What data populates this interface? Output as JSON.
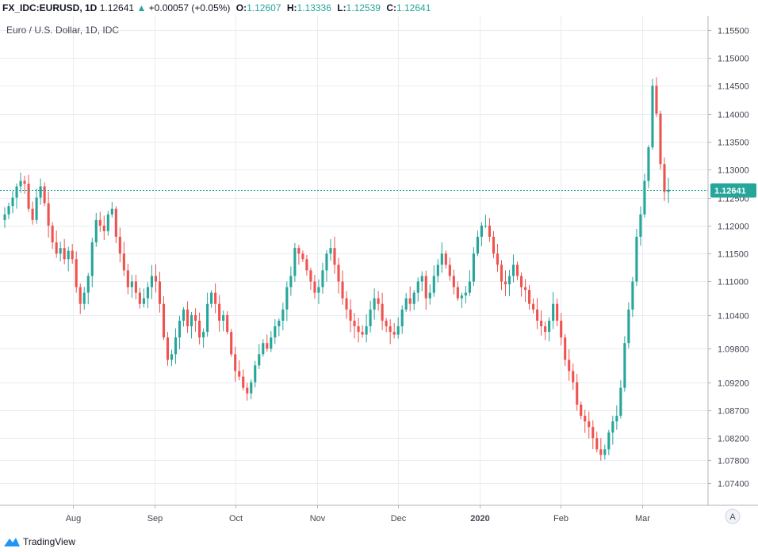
{
  "header": {
    "symbol": "FX_IDC:EURUSD, 1D",
    "last": "1.12641",
    "arrow": "▲",
    "change": "+0.00057 (+0.05%)",
    "open_label": "O:",
    "open": "1.12607",
    "high_label": "H:",
    "high": "1.13336",
    "low_label": "L:",
    "low": "1.12539",
    "close_label": "C:",
    "close": "1.12641"
  },
  "legend": "Euro / U.S. Dollar, 1D, IDC",
  "current_price_label": "1.12641",
  "auto_scale_label": "A",
  "footer": {
    "brand": "TradingView"
  },
  "colors": {
    "up": "#26a69a",
    "down": "#ef5350",
    "grid": "#e9ecf2",
    "axis": "#b2b5be"
  },
  "chart_data": {
    "type": "candlestick",
    "title": "Euro / U.S. Dollar, 1D, IDC",
    "ylim": [
      1.07,
      1.1575
    ],
    "y_ticks": [
      "1.15500",
      "1.15000",
      "1.14500",
      "1.14000",
      "1.13500",
      "1.13000",
      "1.12500",
      "1.12000",
      "1.11500",
      "1.11000",
      "1.10400",
      "1.09800",
      "1.09200",
      "1.08700",
      "1.08200",
      "1.07800",
      "1.07400"
    ],
    "x_ticks": [
      "Aug",
      "Sep",
      "Oct",
      "Nov",
      "Dec",
      "2020",
      "Feb",
      "Mar"
    ],
    "current_price": 1.12641,
    "grid": true,
    "closes": [
      1.122,
      1.1235,
      1.125,
      1.127,
      1.128,
      1.1275,
      1.123,
      1.121,
      1.125,
      1.127,
      1.124,
      1.12,
      1.117,
      1.115,
      1.116,
      1.114,
      1.1155,
      1.114,
      1.109,
      1.106,
      1.108,
      1.111,
      1.117,
      1.121,
      1.12,
      1.119,
      1.122,
      1.123,
      1.118,
      1.115,
      1.112,
      1.109,
      1.11,
      1.108,
      1.106,
      1.107,
      1.109,
      1.111,
      1.11,
      1.106,
      1.1,
      1.096,
      1.097,
      1.1,
      1.103,
      1.105,
      1.102,
      1.104,
      1.103,
      1.1,
      1.101,
      1.106,
      1.108,
      1.106,
      1.103,
      1.104,
      1.101,
      1.097,
      1.094,
      1.093,
      1.091,
      1.09,
      1.092,
      1.095,
      1.097,
      1.099,
      1.098,
      1.1,
      1.102,
      1.103,
      1.105,
      1.109,
      1.111,
      1.116,
      1.115,
      1.114,
      1.112,
      1.11,
      1.108,
      1.109,
      1.112,
      1.115,
      1.116,
      1.113,
      1.11,
      1.107,
      1.105,
      1.103,
      1.102,
      1.101,
      1.1005,
      1.102,
      1.105,
      1.107,
      1.106,
      1.103,
      1.102,
      1.101,
      1.1005,
      1.102,
      1.105,
      1.107,
      1.106,
      1.108,
      1.11,
      1.111,
      1.107,
      1.108,
      1.111,
      1.113,
      1.115,
      1.113,
      1.111,
      1.109,
      1.107,
      1.1075,
      1.108,
      1.11,
      1.115,
      1.118,
      1.12,
      1.12,
      1.118,
      1.115,
      1.113,
      1.11,
      1.1095,
      1.111,
      1.113,
      1.111,
      1.109,
      1.1085,
      1.106,
      1.105,
      1.103,
      1.102,
      1.101,
      1.103,
      1.106,
      1.103,
      1.1,
      1.096,
      1.094,
      1.092,
      1.088,
      1.086,
      1.085,
      1.084,
      1.082,
      1.08,
      1.079,
      1.08,
      1.083,
      1.085,
      1.086,
      1.091,
      1.099,
      1.105,
      1.11,
      1.118,
      1.122,
      1.128,
      1.134,
      1.145,
      1.14,
      1.131,
      1.126,
      1.1264
    ]
  }
}
